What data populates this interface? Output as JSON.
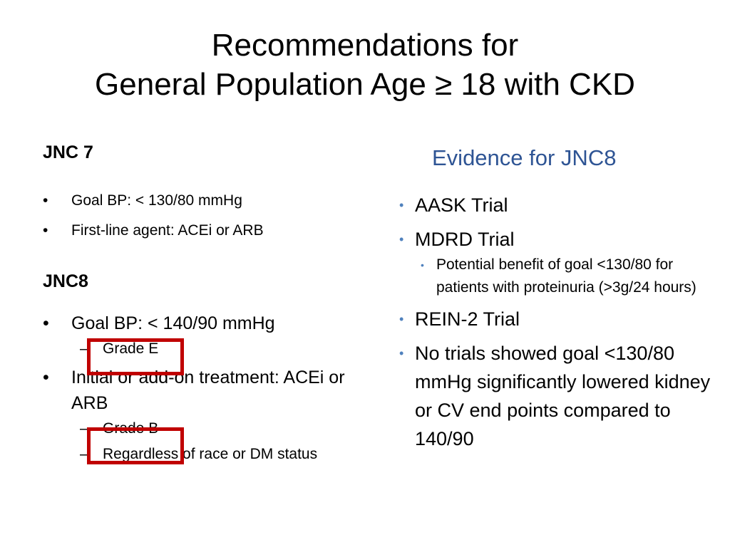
{
  "title": {
    "line1": "Recommendations for",
    "line2": "General Population Age ≥ 18 with CKD"
  },
  "left": {
    "jnc7_heading": "JNC 7",
    "jnc7_items": [
      "Goal BP: < 130/80 mmHg",
      "First-line agent: ACEi or ARB"
    ],
    "jnc8_heading": "JNC8",
    "jnc8_item1": "Goal BP: < 140/90 mmHg",
    "jnc8_item1_sub": [
      "Grade E"
    ],
    "jnc8_item2": "Initial or add-on treatment: ACEi or ARB",
    "jnc8_item2_sub": [
      "Grade B",
      "Regardless of race or DM status"
    ],
    "bullet_char": "•",
    "dash_char": "–"
  },
  "right": {
    "heading": "Evidence for JNC8",
    "items": [
      "AASK Trial",
      "MDRD Trial",
      "REIN-2 Trial",
      "No trials showed goal <130/80 mmHg significantly lowered kidney or CV end points compared to 140/90"
    ],
    "mdrd_sub": "Potential benefit of goal <130/80 for patients with proteinuria (>3g/24 hours)",
    "bullet_char": "•"
  },
  "colors": {
    "highlight_box": "#c00000",
    "heading_blue": "#2e5494",
    "bullet_blue": "#4f81bd"
  }
}
